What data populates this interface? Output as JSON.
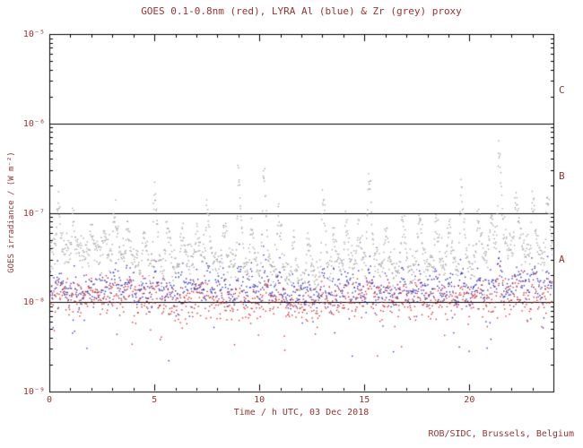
{
  "credit": "ROB/SIDC, Brussels, Belgium",
  "colors": {
    "text": "#993333",
    "axis": "#000000",
    "background": "#ffffff",
    "goes_red": "#cc3333",
    "lyra_al_blue": "#3333bb",
    "lyra_zr_grey": "#a8a8a8"
  },
  "chart_data": {
    "type": "scatter",
    "title": "GOES 0.1-0.8nm (red), LYRA Al (blue) & Zr (grey) proxy",
    "xlabel": "Time / h UTC, 03 Dec 2018",
    "ylabel": "GOES irradiance / (W m⁻²)",
    "x_range": [
      0,
      24
    ],
    "y_log_range": [
      -9,
      -5
    ],
    "y_scale": "log",
    "grid": "off",
    "x_major_ticks": [
      0,
      5,
      10,
      15,
      20
    ],
    "x_minor_step": 1,
    "y_major_ticks": [
      {
        "log": -5,
        "label": "10⁻⁵"
      },
      {
        "log": -6,
        "label": "10⁻⁶"
      },
      {
        "log": -7,
        "label": "10⁻⁷"
      },
      {
        "log": -8,
        "label": "10⁻⁸"
      },
      {
        "log": -9,
        "label": "10⁻⁹"
      }
    ],
    "threshold_lines_wm2": [
      1e-06,
      1e-07,
      1e-08
    ],
    "flare_classes": [
      {
        "label": "C",
        "log_center": -5.62
      },
      {
        "label": "B",
        "log_center": -6.58
      },
      {
        "label": "A",
        "log_center": -7.52
      }
    ],
    "series": [
      {
        "name": "LYRA Zr proxy",
        "color": "#a8a8a8",
        "baseline_log": -7.58,
        "noise_dex": 0.09,
        "slow_amp": 0.14,
        "spike_gain": 1.0,
        "points": 1400,
        "low_outlier_prob": 0.004,
        "low_outlier_depth": 0.4
      },
      {
        "name": "LYRA Al proxy",
        "color": "#3333bb",
        "baseline_log": -7.9,
        "noise_dex": 0.09,
        "slow_amp": 0.05,
        "spike_gain": 0.32,
        "points": 950,
        "low_outlier_prob": 0.03,
        "low_outlier_depth": 0.55
      },
      {
        "name": "GOES 0.1-0.8nm",
        "color": "#cc3333",
        "baseline_log": -7.99,
        "noise_dex": 0.1,
        "slow_amp": 0.04,
        "spike_gain": 0.15,
        "points": 950,
        "low_outlier_prob": 0.03,
        "low_outlier_depth": 0.35
      }
    ],
    "spikes": [
      [
        0.4,
        0.5
      ],
      [
        1.1,
        0.35
      ],
      [
        2.0,
        0.3
      ],
      [
        2.6,
        0.25
      ],
      [
        3.1,
        0.5
      ],
      [
        3.7,
        0.4
      ],
      [
        4.5,
        0.35
      ],
      [
        5.0,
        0.95
      ],
      [
        5.6,
        0.5
      ],
      [
        6.3,
        0.35
      ],
      [
        7.0,
        0.3
      ],
      [
        7.5,
        0.55
      ],
      [
        8.3,
        0.4
      ],
      [
        9.0,
        1.0
      ],
      [
        9.6,
        0.5
      ],
      [
        10.2,
        1.1
      ],
      [
        10.9,
        0.6
      ],
      [
        11.6,
        0.4
      ],
      [
        12.3,
        0.5
      ],
      [
        13.0,
        0.9
      ],
      [
        13.5,
        0.45
      ],
      [
        14.1,
        0.45
      ],
      [
        14.7,
        0.35
      ],
      [
        15.2,
        1.0
      ],
      [
        16.0,
        0.4
      ],
      [
        16.8,
        0.5
      ],
      [
        17.6,
        0.55
      ],
      [
        18.4,
        0.45
      ],
      [
        19.0,
        0.5
      ],
      [
        19.6,
        0.85
      ],
      [
        20.4,
        0.5
      ],
      [
        21.0,
        0.4
      ],
      [
        21.4,
        1.05
      ],
      [
        22.2,
        0.5
      ],
      [
        23.0,
        0.6
      ],
      [
        23.7,
        0.7
      ]
    ],
    "seed": 42
  }
}
